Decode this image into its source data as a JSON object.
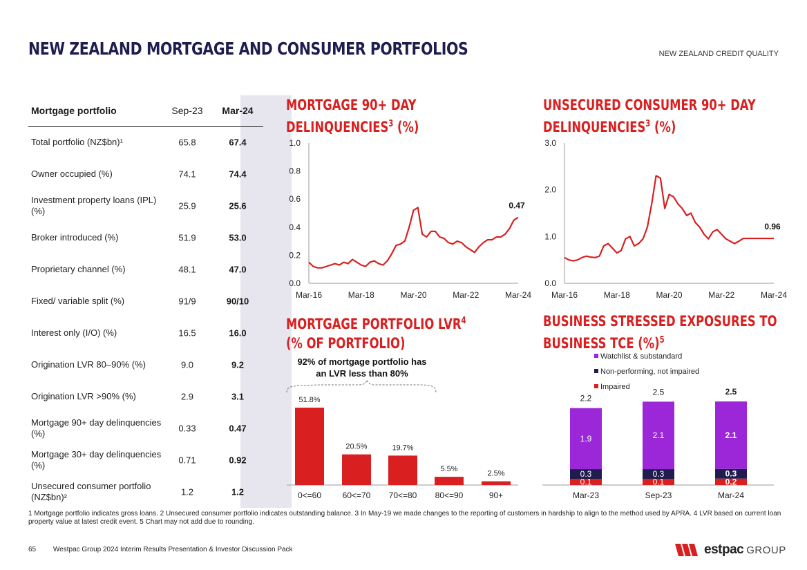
{
  "header": {
    "title": "NEW ZEALAND MORTGAGE AND CONSUMER PORTFOLIOS",
    "section": "NEW ZEALAND CREDIT QUALITY"
  },
  "mortgage_table": {
    "columns": [
      "Mortgage portfolio",
      "Sep-23",
      "Mar-24"
    ],
    "rows": [
      {
        "label": "Total portfolio (NZ$bn)¹",
        "sep23": "65.8",
        "mar24": "67.4"
      },
      {
        "label": "Owner occupied (%)",
        "sep23": "74.1",
        "mar24": "74.4"
      },
      {
        "label": "Investment property loans (IPL) (%)",
        "sep23": "25.9",
        "mar24": "25.6"
      },
      {
        "label": "Broker introduced (%)",
        "sep23": "51.9",
        "mar24": "53.0"
      },
      {
        "label": "Proprietary channel (%)",
        "sep23": "48.1",
        "mar24": "47.0"
      },
      {
        "label": "Fixed/ variable split (%)",
        "sep23": "91/9",
        "mar24": "90/10"
      },
      {
        "label": "Interest only (I/O) (%)",
        "sep23": "16.5",
        "mar24": "16.0"
      },
      {
        "label": "Origination LVR 80–90% (%)",
        "sep23": "9.0",
        "mar24": "9.2"
      },
      {
        "label": "Origination LVR >90% (%)",
        "sep23": "2.9",
        "mar24": "3.1"
      },
      {
        "label": "Mortgage 90+ day delinquencies (%)",
        "sep23": "0.33",
        "mar24": "0.47"
      },
      {
        "label": "Mortgage 30+ day delinquencies (%)",
        "sep23": "0.71",
        "mar24": "0.92"
      },
      {
        "label": "Unsecured consumer portfolio (NZ$bn)²",
        "sep23": "1.2",
        "mar24": "1.2"
      }
    ]
  },
  "chart_titles": {
    "mortgage90": [
      "MORTGAGE 90+ DAY",
      "DELINQUENCIES",
      "3",
      " (%)"
    ],
    "unsecured90": [
      "UNSECURED CONSUMER 90+ DAY",
      "DELINQUENCIES",
      "3",
      " (%)"
    ],
    "lvr": [
      "MORTGAGE PORTFOLIO LVR",
      "4",
      "(% OF PORTFOLIO)"
    ],
    "stressed": [
      "BUSINESS STRESSED EXPOSURES TO",
      "BUSINESS TCE (%)",
      "5"
    ]
  },
  "colors": {
    "red": "#d91f1f",
    "purple": "#9b27d9",
    "navy": "#1f1c4f",
    "title": "#1f1c4f"
  },
  "chart_data": [
    {
      "type": "line",
      "id": "mortgage90",
      "x_ticks": [
        "Mar-16",
        "Mar-18",
        "Mar-20",
        "Mar-22",
        "Mar-24"
      ],
      "x_range": [
        "2016-03",
        "2024-03"
      ],
      "ylim": [
        0,
        1.0
      ],
      "y_ticks": [
        "0.0",
        "0.2",
        "0.4",
        "0.6",
        "0.8",
        "1.0"
      ],
      "end_label": "0.47",
      "series": [
        {
          "x": [
            0,
            2,
            4,
            6,
            8,
            10,
            12,
            14,
            16,
            18,
            20,
            22,
            24,
            26,
            28,
            30,
            32,
            34,
            36,
            38,
            40,
            42,
            44,
            46,
            48,
            50,
            52,
            54,
            56,
            58,
            60,
            62,
            64,
            66,
            68,
            70,
            72,
            74,
            76,
            78,
            80,
            82,
            84,
            86,
            88,
            90,
            92,
            94,
            96
          ],
          "values": [
            0.15,
            0.12,
            0.11,
            0.11,
            0.12,
            0.13,
            0.14,
            0.13,
            0.15,
            0.14,
            0.17,
            0.15,
            0.13,
            0.12,
            0.15,
            0.16,
            0.14,
            0.13,
            0.16,
            0.21,
            0.27,
            0.28,
            0.3,
            0.4,
            0.52,
            0.54,
            0.35,
            0.33,
            0.37,
            0.37,
            0.33,
            0.32,
            0.29,
            0.28,
            0.3,
            0.29,
            0.26,
            0.24,
            0.22,
            0.26,
            0.29,
            0.31,
            0.31,
            0.33,
            0.33,
            0.35,
            0.39,
            0.45,
            0.47
          ]
        }
      ]
    },
    {
      "type": "line",
      "id": "unsecured90",
      "x_ticks": [
        "Mar-16",
        "Mar-18",
        "Mar-20",
        "Mar-22",
        "Mar-24"
      ],
      "x_range": [
        "2016-03",
        "2024-03"
      ],
      "ylim": [
        0,
        3.0
      ],
      "y_ticks": [
        "0.0",
        "1.0",
        "2.0",
        "3.0"
      ],
      "end_label": "0.96",
      "series": [
        {
          "x": [
            0,
            2,
            4,
            6,
            8,
            10,
            12,
            14,
            16,
            18,
            20,
            22,
            24,
            26,
            28,
            30,
            32,
            34,
            36,
            38,
            40,
            42,
            44,
            46,
            48,
            50,
            52,
            54,
            56,
            58,
            60,
            62,
            64,
            66,
            68,
            70,
            72,
            74,
            76,
            78,
            80,
            82,
            84,
            86,
            88,
            90,
            92,
            94,
            96
          ],
          "values": [
            0.55,
            0.5,
            0.48,
            0.5,
            0.55,
            0.58,
            0.56,
            0.55,
            0.58,
            0.8,
            0.85,
            0.75,
            0.65,
            0.7,
            0.95,
            1.0,
            0.8,
            0.85,
            0.95,
            1.2,
            1.7,
            2.3,
            2.25,
            1.6,
            1.9,
            1.85,
            1.7,
            1.6,
            1.45,
            1.5,
            1.3,
            1.2,
            1.05,
            0.95,
            1.1,
            1.15,
            1.05,
            0.95,
            0.9,
            0.85,
            0.9,
            0.96,
            0.96,
            0.96,
            0.96,
            0.96,
            0.96,
            0.96,
            0.96
          ]
        }
      ]
    },
    {
      "type": "bar",
      "id": "lvr",
      "annotation": "92% of mortgage portfolio has an LVR less than 80%",
      "categories": [
        "0<=60",
        "60<=70",
        "70<=80",
        "80<=90",
        "90+"
      ],
      "values": [
        51.8,
        20.5,
        19.7,
        5.5,
        2.5
      ],
      "labels": [
        "51.8%",
        "20.5%",
        "19.7%",
        "5.5%",
        "2.5%"
      ],
      "ylim": [
        0,
        60
      ]
    },
    {
      "type": "bar",
      "id": "stressed",
      "stacked": true,
      "categories": [
        "Mar-23",
        "Sep-23",
        "Mar-24"
      ],
      "totals": [
        "2.2",
        "2.5",
        "2.5"
      ],
      "series": [
        {
          "name": "Impaired",
          "values": [
            0.1,
            0.1,
            0.2
          ],
          "labels": [
            "0.1",
            "0.1",
            "0.2"
          ],
          "color": "#d91f1f"
        },
        {
          "name": "Non-performing, not impaired",
          "values": [
            0.3,
            0.3,
            0.3
          ],
          "labels": [
            "0.3",
            "0.3",
            "0.3"
          ],
          "color": "#1f1c4f"
        },
        {
          "name": "Watchlist & substandard",
          "values": [
            1.9,
            2.1,
            2.1
          ],
          "labels": [
            "1.9",
            "2.1",
            "2.1"
          ],
          "color": "#9b27d9"
        }
      ],
      "legend": "top-left",
      "ylim": [
        0,
        3.0
      ]
    }
  ],
  "footnote": "1 Mortgage portfolio indicates gross loans. 2 Unsecured consumer portfolio indicates outstanding balance. 3 In May-19 we made changes to the reporting of customers in hardship to align to the method used by APRA. 4 LVR based on current loan property value at latest credit event. 5 Chart may not add due to rounding.",
  "footer": {
    "page": "65",
    "text": "Westpac Group 2024 Interim Results Presentation & Investor Discussion Pack",
    "logo_word": "estpac",
    "logo_group": "GROUP"
  }
}
